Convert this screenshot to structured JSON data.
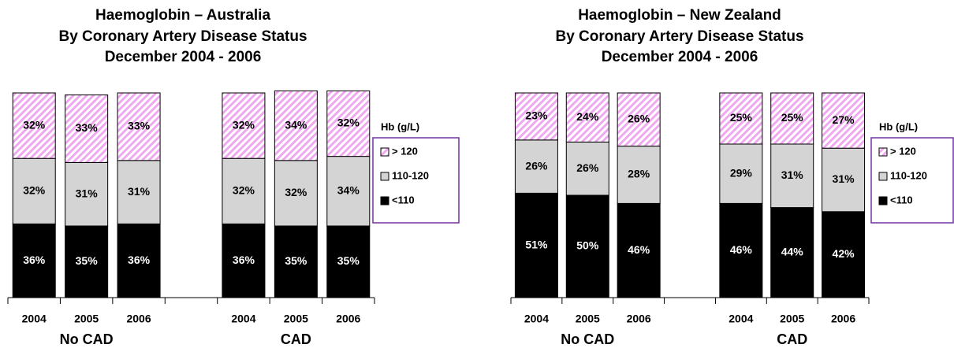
{
  "chart_data": [
    {
      "type": "stacked_bar",
      "title": "Haemoglobin – Australia",
      "subtitle": [
        "By Coronary Artery Disease Status",
        "December 2004 - 2006"
      ],
      "categories": [
        "2004",
        "2005",
        "2006",
        null,
        "2004",
        "2005",
        "2006"
      ],
      "group_labels": [
        "No CAD",
        "CAD"
      ],
      "ylim": [
        0,
        100
      ],
      "legend_title": "Hb (g/L)",
      "series": [
        {
          "name": "<110",
          "color": "#000000",
          "values": [
            36,
            35,
            36,
            null,
            36,
            35,
            35
          ],
          "value_labels": [
            "36%",
            "35%",
            "36%",
            null,
            "36%",
            "35%",
            "35%"
          ]
        },
        {
          "name": "110-120",
          "color": "#d4d4d4",
          "values": [
            32,
            31,
            31,
            null,
            32,
            32,
            34
          ],
          "value_labels": [
            "32%",
            "31%",
            "31%",
            null,
            "32%",
            "32%",
            "34%"
          ]
        },
        {
          "name": "> 120",
          "color": "#f0a8f0",
          "pattern": "hatch",
          "values": [
            32,
            33,
            33,
            null,
            32,
            34,
            32
          ],
          "value_labels": [
            "32%",
            "33%",
            "33%",
            null,
            "32%",
            "34%",
            "32%"
          ]
        }
      ]
    },
    {
      "type": "stacked_bar",
      "title": "Haemoglobin – New Zealand",
      "subtitle": [
        "By Coronary Artery Disease Status",
        "December 2004 - 2006"
      ],
      "categories": [
        "2004",
        "2005",
        "2006",
        null,
        "2004",
        "2005",
        "2006"
      ],
      "group_labels": [
        "No CAD",
        "CAD"
      ],
      "ylim": [
        0,
        100
      ],
      "legend_title": "Hb (g/L)",
      "series": [
        {
          "name": "<110",
          "color": "#000000",
          "values": [
            51,
            50,
            46,
            null,
            46,
            44,
            42
          ],
          "value_labels": [
            "51%",
            "50%",
            "46%",
            null,
            "46%",
            "44%",
            "42%"
          ]
        },
        {
          "name": "110-120",
          "color": "#d4d4d4",
          "values": [
            26,
            26,
            28,
            null,
            29,
            31,
            31
          ],
          "value_labels": [
            "26%",
            "26%",
            "28%",
            null,
            "29%",
            "31%",
            "31%"
          ]
        },
        {
          "name": "> 120",
          "color": "#f0a8f0",
          "pattern": "hatch",
          "values": [
            23,
            24,
            26,
            null,
            25,
            25,
            27
          ],
          "value_labels": [
            "23%",
            "24%",
            "26%",
            null,
            "25%",
            "25%",
            "27%"
          ]
        }
      ]
    }
  ]
}
